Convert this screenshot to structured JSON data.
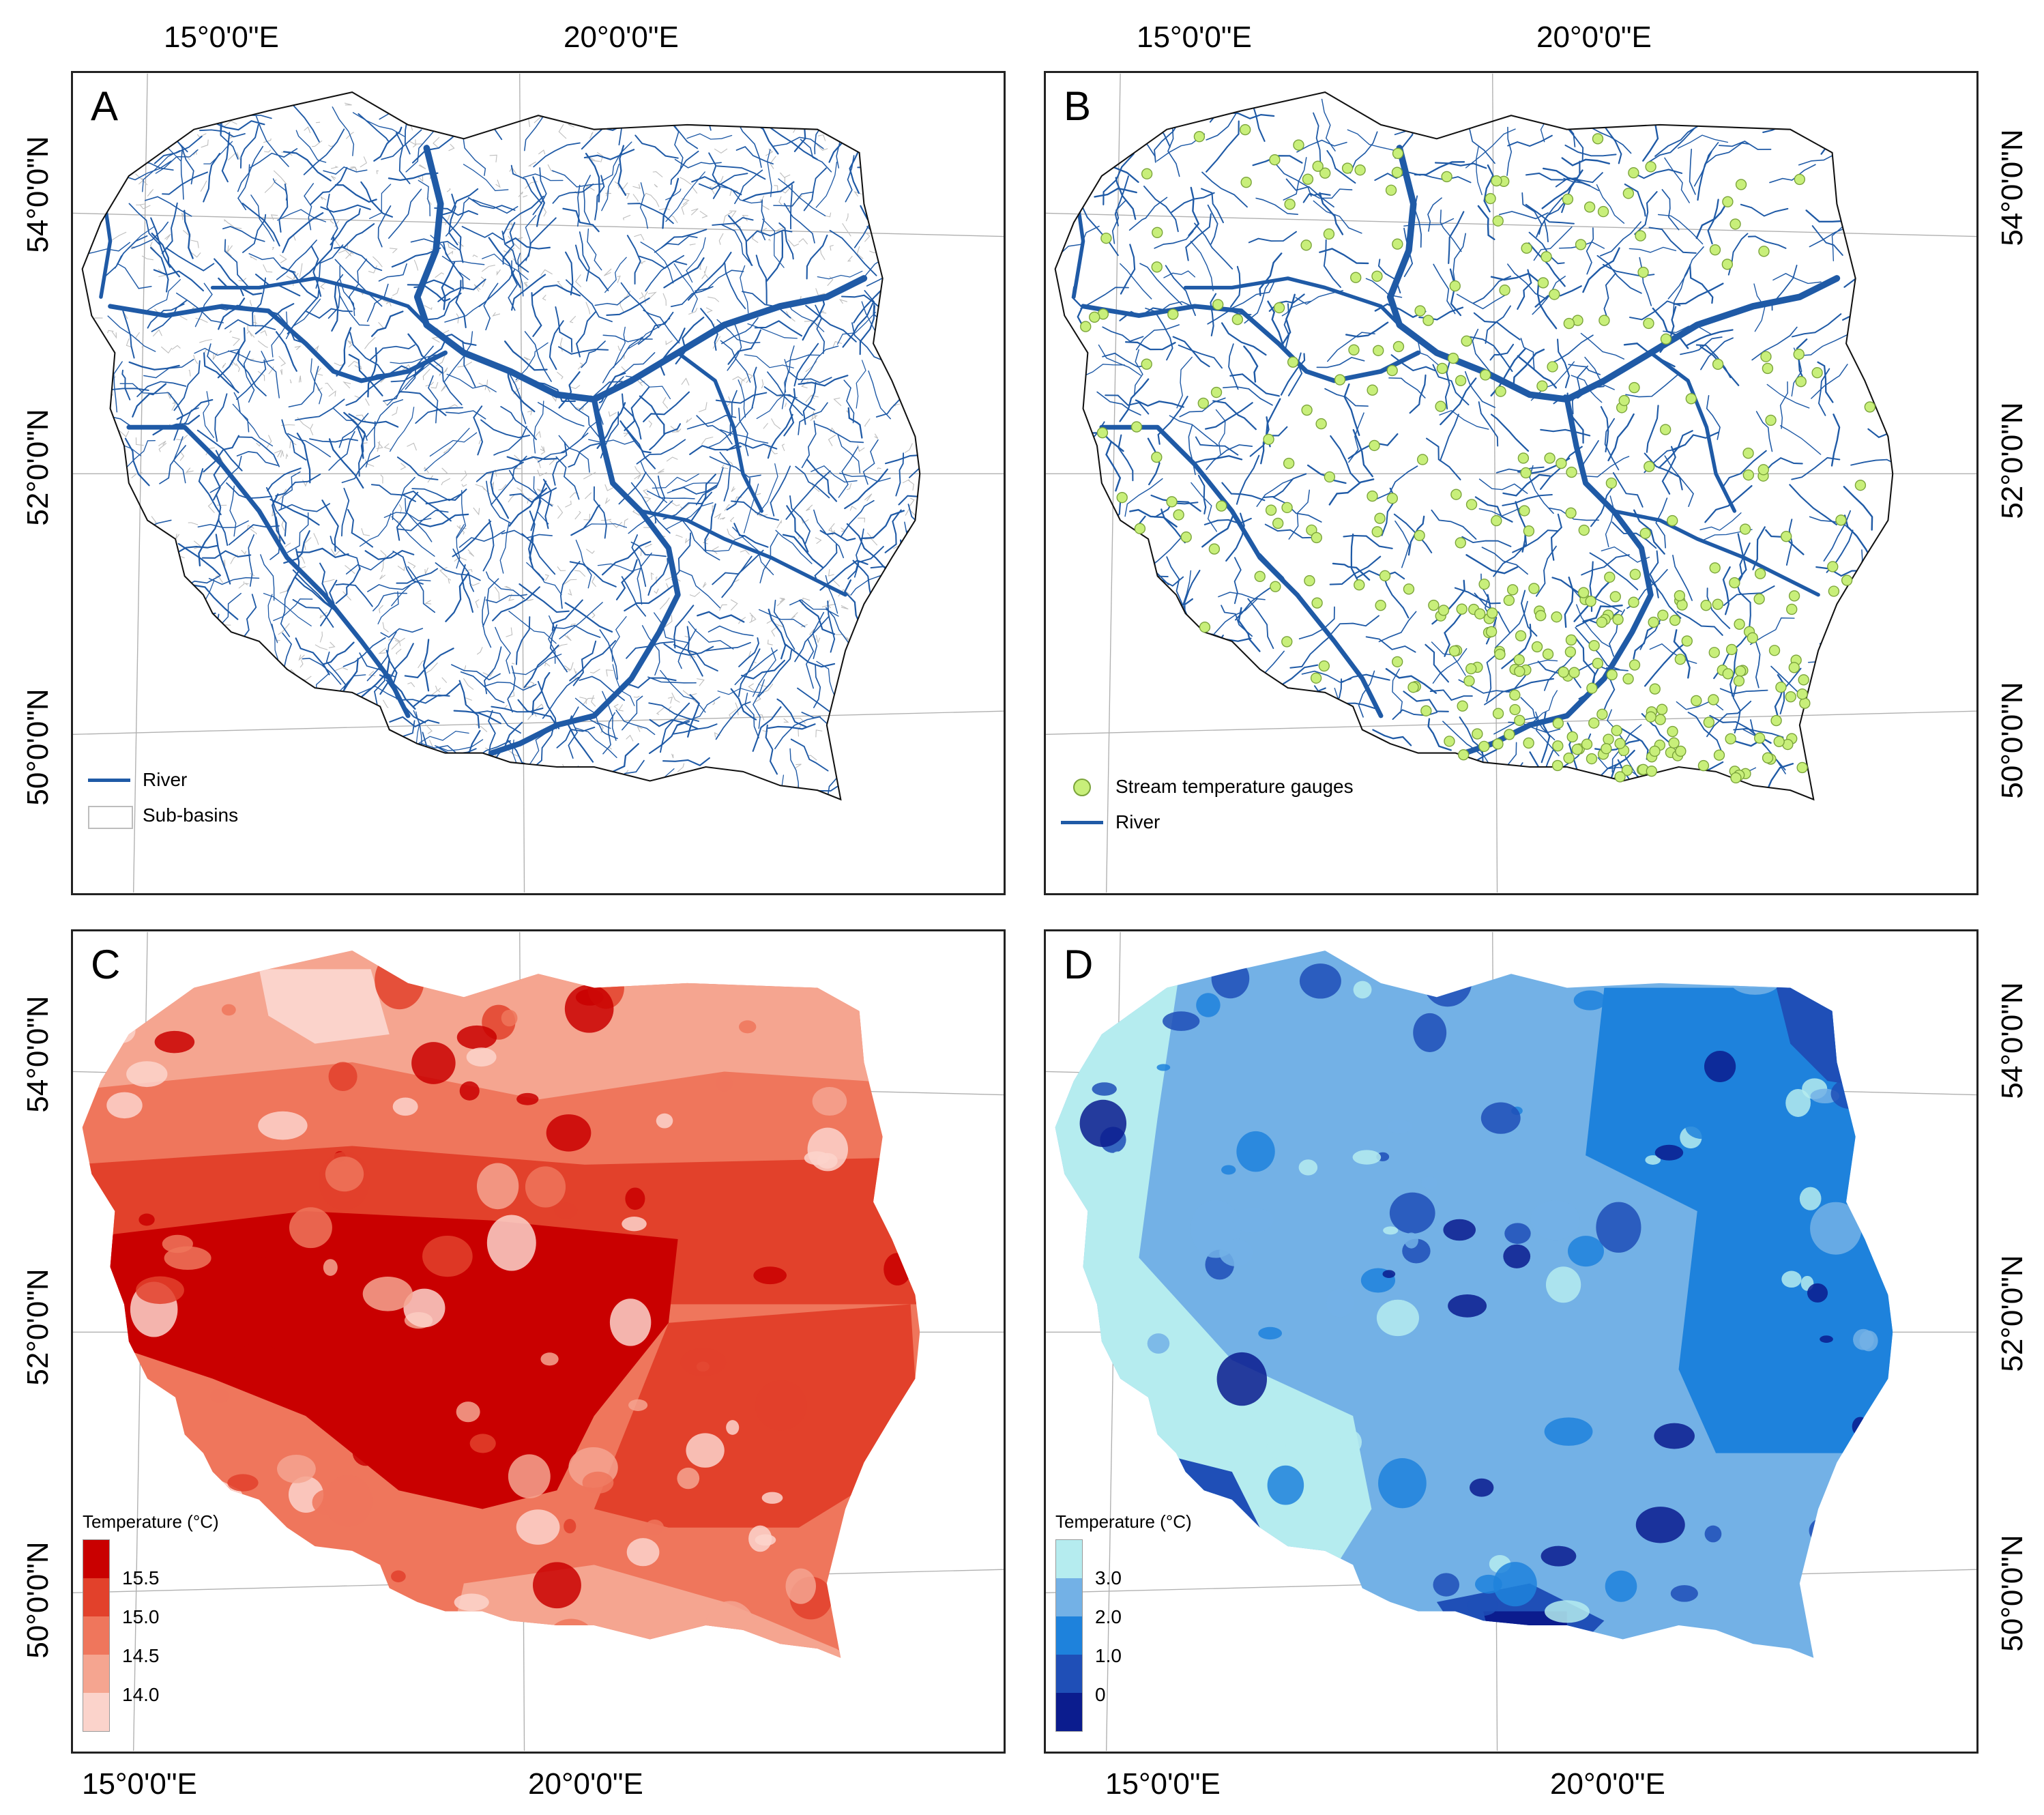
{
  "panels": {
    "A": {
      "label": "A",
      "legend": [
        {
          "name": "river-legend",
          "label": "River",
          "symbol": "line",
          "color": "#1f5aa6"
        },
        {
          "name": "sub-basins-legend",
          "label": "Sub-basins",
          "symbol": "box",
          "color": "#bdbdbd"
        }
      ]
    },
    "B": {
      "label": "B",
      "legend": [
        {
          "name": "gauges-legend",
          "label": "Stream temperature gauges",
          "symbol": "dot",
          "color": "#c8ef7a"
        },
        {
          "name": "river-legend",
          "label": "River",
          "symbol": "line",
          "color": "#1f5aa6"
        }
      ]
    },
    "C": {
      "label": "C",
      "legend_title": "Temperature (°C)",
      "ticks": [
        "15.5",
        "15.0",
        "14.5",
        "14.0"
      ],
      "colors": [
        "#c90000",
        "#e2412b",
        "#ef765c",
        "#f5a590",
        "#fbd3cb"
      ]
    },
    "D": {
      "label": "D",
      "legend_title": "Temperature (°C)",
      "ticks": [
        "3.0",
        "2.0",
        "1.0",
        "0"
      ],
      "colors": [
        "#b5ecef",
        "#73b1e6",
        "#1e82dc",
        "#1f4fb7",
        "#0b1c8e"
      ]
    }
  },
  "axes": {
    "top": [
      "15°0'0\"E",
      "20°0'0\"E",
      "15°0'0\"E",
      "20°0'0\"E"
    ],
    "bottom": [
      "15°0'0\"E",
      "20°0'0\"E",
      "15°0'0\"E",
      "20°0'0\"E"
    ],
    "left": [
      "54°0'0\"N",
      "52°0'0\"N",
      "50°0'0\"N",
      "54°0'0\"N",
      "52°0'0\"N",
      "50°0'0\"N"
    ],
    "right": [
      "54°0'0\"N",
      "52°0'0\"N",
      "50°0'0\"N",
      "54°0'0\"N",
      "52°0'0\"N",
      "50°0'0\"N"
    ]
  },
  "colors": {
    "river": "#1f5aa6",
    "gauge": "#c8ef7a",
    "gauge_stroke": "#7aa33a",
    "basin_line": "#bdbdbd",
    "border": "#111111",
    "graticule": "#b0b0b0"
  }
}
